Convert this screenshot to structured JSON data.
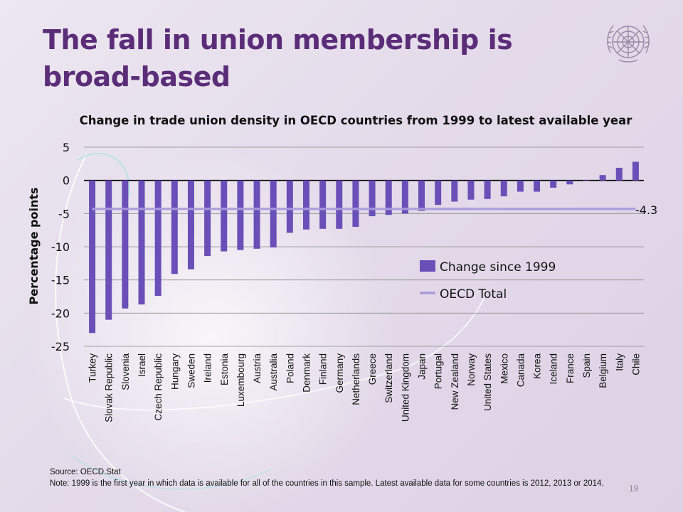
{
  "slide": {
    "title": "The fall in union membership is broad-based",
    "source": "Source: OECD.Stat",
    "note": "Note: 1999  is the first year in which data is available for all of the countries in this sample. Latest available data for some countries is 2012,  2013  or 2014.",
    "page_number": "19",
    "emblem_icon": "un-emblem-icon"
  },
  "chart_data": {
    "type": "bar",
    "title": "Change in trade union density in OECD countries from 1999 to latest available year",
    "ylabel": "Percentage points",
    "xlabel": "",
    "ylim": [
      -25,
      5
    ],
    "yticks": [
      5,
      0,
      -5,
      -10,
      -15,
      -20,
      -25
    ],
    "grid": true,
    "legend_placement": "right-middle",
    "categories": [
      "Turkey",
      "Slovak Republic",
      "Slovenia",
      "Israel",
      "Czech Republic",
      "Hungary",
      "Sweden",
      "Ireland",
      "Estonia",
      "Luxembourg",
      "Austria",
      "Australia",
      "Poland",
      "Denmark",
      "Finland",
      "Germany",
      "Netherlands",
      "Greece",
      "Switzerland",
      "United Kingdom",
      "Japan",
      "Portugal",
      "New Zealand",
      "Norway",
      "United States",
      "Mexico",
      "Canada",
      "Korea",
      "Iceland",
      "France",
      "Spain",
      "Belgium",
      "Italy",
      "Chile"
    ],
    "series": [
      {
        "name": "Change since 1999",
        "type": "bar",
        "color": "#6a4fb8",
        "values": [
          -23.0,
          -21.0,
          -19.3,
          -18.7,
          -17.4,
          -14.1,
          -13.4,
          -11.4,
          -10.7,
          -10.5,
          -10.3,
          -10.1,
          -7.9,
          -7.4,
          -7.3,
          -7.3,
          -7.0,
          -5.4,
          -5.2,
          -5.0,
          -4.6,
          -3.7,
          -3.2,
          -2.9,
          -2.8,
          -2.4,
          -1.7,
          -1.7,
          -1.1,
          -0.6,
          -0.1,
          0.8,
          1.9,
          2.8
        ]
      },
      {
        "name": "OECD Total",
        "type": "line",
        "color": "#a89bdc",
        "value": -4.3,
        "label": "-4.3"
      }
    ]
  }
}
